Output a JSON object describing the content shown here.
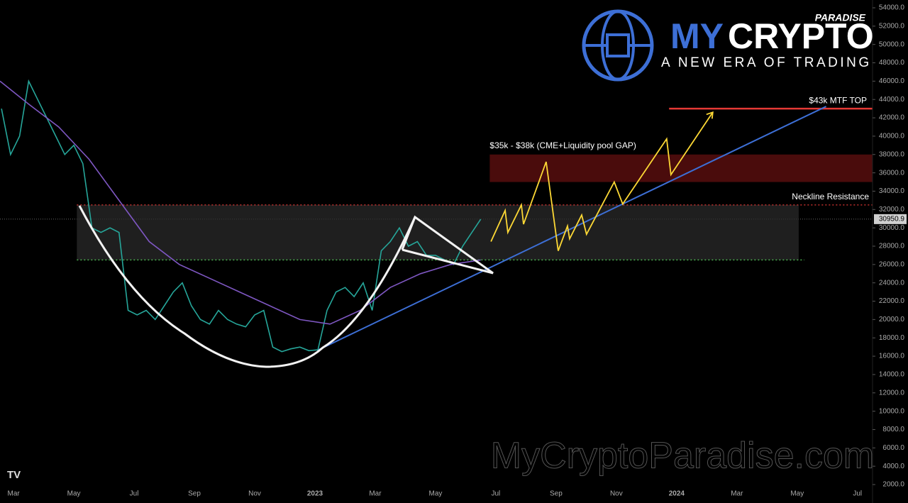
{
  "chart_data": {
    "type": "line",
    "xlim": [
      1.55,
      30.5
    ],
    "ylim": [
      2000,
      54000
    ],
    "xticks": [
      {
        "value": 2,
        "label": "Mar"
      },
      {
        "value": 4,
        "label": "May"
      },
      {
        "value": 6,
        "label": "Jul"
      },
      {
        "value": 8,
        "label": "Sep"
      },
      {
        "value": 10,
        "label": "Nov"
      },
      {
        "value": 12,
        "label": "2023"
      },
      {
        "value": 14,
        "label": "Mar"
      },
      {
        "value": 16,
        "label": "May"
      },
      {
        "value": 18,
        "label": "Jul"
      },
      {
        "value": 20,
        "label": "Sep"
      },
      {
        "value": 22,
        "label": "Nov"
      },
      {
        "value": 24,
        "label": "2024"
      },
      {
        "value": 26,
        "label": "Mar"
      },
      {
        "value": 28,
        "label": "May"
      },
      {
        "value": 30,
        "label": "Jul"
      }
    ],
    "yticks": [
      {
        "value": 54000,
        "label": "54000.0"
      },
      {
        "value": 52000,
        "label": "52000.0"
      },
      {
        "value": 50000,
        "label": "50000.0"
      },
      {
        "value": 48000,
        "label": "48000.0"
      },
      {
        "value": 46000,
        "label": "46000.0"
      },
      {
        "value": 44000,
        "label": "44000.0"
      },
      {
        "value": 42000,
        "label": "42000.0"
      },
      {
        "value": 40000,
        "label": "40000.0"
      },
      {
        "value": 38000,
        "label": "38000.0"
      },
      {
        "value": 36000,
        "label": "36000.0"
      },
      {
        "value": 34000,
        "label": "34000.0"
      },
      {
        "value": 32000,
        "label": "32000.0"
      },
      {
        "value": 30000,
        "label": "30000.0"
      },
      {
        "value": 28000,
        "label": "28000.0"
      },
      {
        "value": 26000,
        "label": "26000.0"
      },
      {
        "value": 24000,
        "label": "24000.0"
      },
      {
        "value": 22000,
        "label": "22000.0"
      },
      {
        "value": 20000,
        "label": "20000.0"
      },
      {
        "value": 18000,
        "label": "18000.0"
      },
      {
        "value": 16000,
        "label": "16000.0"
      },
      {
        "value": 14000,
        "label": "14000.0"
      },
      {
        "value": 12000,
        "label": "12000.0"
      },
      {
        "value": 10000,
        "label": "10000.0"
      },
      {
        "value": 8000,
        "label": "8000.0"
      },
      {
        "value": 6000,
        "label": "6000.0"
      },
      {
        "value": 4000,
        "label": "4000.0"
      },
      {
        "value": 2000,
        "label": "2000.0"
      }
    ],
    "series": [
      {
        "color": "#26a69a",
        "x": [
          1.6,
          1.9,
          2.2,
          2.5,
          2.8,
          3.1,
          3.4,
          3.7,
          4.0,
          4.3,
          4.6,
          4.9,
          5.2,
          5.5,
          5.8,
          6.1,
          6.4,
          6.7,
          7.0,
          7.3,
          7.6,
          7.9,
          8.2,
          8.5,
          8.8,
          9.1,
          9.4,
          9.7,
          10.0,
          10.3,
          10.6,
          10.9,
          11.2,
          11.5,
          11.8,
          12.1,
          12.4,
          12.7,
          13.0,
          13.3,
          13.6,
          13.9,
          14.2,
          14.5,
          14.8,
          15.1,
          15.4,
          15.7,
          16.0,
          16.3,
          16.6,
          16.9,
          17.5
        ],
        "values": [
          43000,
          38000,
          40000,
          46000,
          44000,
          42000,
          40000,
          38000,
          39000,
          37000,
          30000,
          29500,
          30000,
          29500,
          21000,
          20500,
          21000,
          20000,
          21500,
          23000,
          24000,
          21500,
          20000,
          19500,
          21000,
          20000,
          19500,
          19200,
          20500,
          21000,
          17000,
          16500,
          16800,
          17000,
          16600,
          16700,
          21000,
          23000,
          23500,
          22500,
          24000,
          21000,
          27500,
          28500,
          30000,
          28000,
          28500,
          27000,
          27000,
          26500,
          26000,
          28000,
          30950.9
        ]
      },
      {
        "color": "#7e57c2",
        "x": [
          1.55,
          2.5,
          3.5,
          4.5,
          5.5,
          6.5,
          7.5,
          8.5,
          9.5,
          10.5,
          11.5,
          12.5,
          13.5,
          14.5,
          15.5,
          16.5,
          17.5
        ],
        "values": [
          46000,
          43500,
          41000,
          37500,
          33000,
          28500,
          26000,
          24500,
          23000,
          21500,
          20000,
          19500,
          21000,
          23500,
          25000,
          26000,
          26500
        ]
      },
      {
        "color": "#fdd835",
        "x": [
          17.84,
          18.31,
          18.4,
          18.85,
          18.92,
          19.67,
          20.07,
          20.38,
          20.45,
          20.85,
          21.01,
          21.93,
          22.21,
          23.67,
          23.81,
          25.2
        ],
        "values": [
          28500,
          31900,
          29500,
          32500,
          30400,
          37200,
          27500,
          30200,
          28800,
          31400,
          29300,
          35000,
          32600,
          39700,
          35800,
          42600
        ]
      }
    ],
    "trendline": {
      "color": "#3d6fd6",
      "x": [
        12.07,
        28.96
      ],
      "values": [
        16620,
        43240
      ]
    },
    "range_box": {
      "color": "#2a2a2a",
      "x": [
        4.1,
        28.05
      ],
      "values": [
        26500,
        32500
      ]
    },
    "support": {
      "color": "#4caf50",
      "value": 26500
    },
    "neckline": {
      "label": "Neckline Resistance",
      "value": 32500,
      "color": "#e53935"
    },
    "gap_zone": {
      "label": "$35k - $38k (CME+Liquidity pool GAP)",
      "values": [
        35000,
        38000
      ],
      "x": 17.8,
      "color": "#4a0c0c"
    },
    "top_level": {
      "label": "$43k MTF TOP",
      "value": 43000,
      "x": 23.75,
      "color": "#e53935"
    },
    "last_price": 30950.9
  },
  "branding": {
    "kicker": "PARADISE",
    "name_a": "MY",
    "name_b": "CRYPTO",
    "tagline": "A NEW ERA OF TRADING",
    "watermark": "MyCryptoParadise.com"
  }
}
